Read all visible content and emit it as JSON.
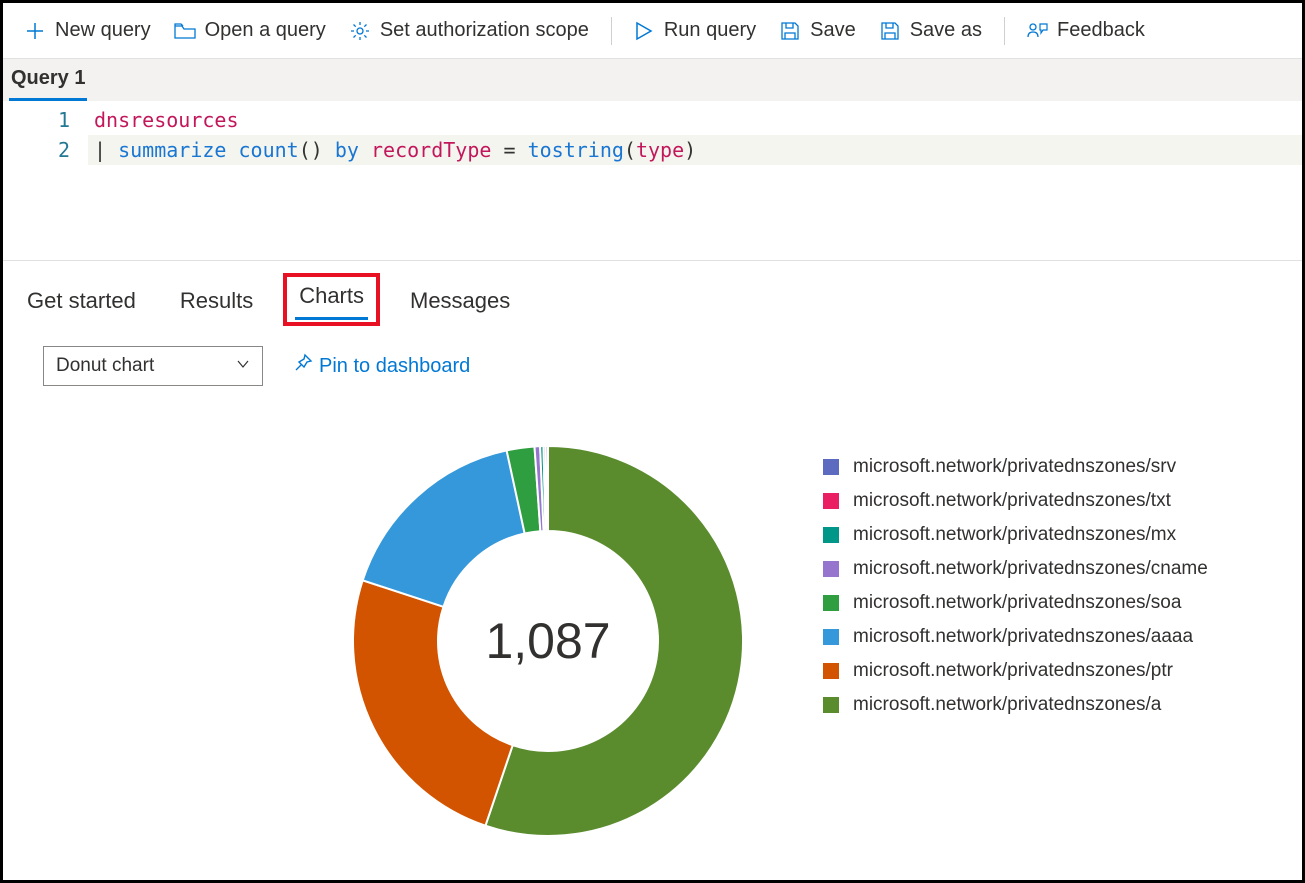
{
  "toolbar": {
    "new_query": "New query",
    "open_query": "Open a query",
    "auth_scope": "Set authorization scope",
    "run_query": "Run query",
    "save": "Save",
    "save_as": "Save as",
    "feedback": "Feedback",
    "icon_color": "#0078d4"
  },
  "query_tab": {
    "label": "Query 1"
  },
  "editor": {
    "lines": [
      {
        "num": "1"
      },
      {
        "num": "2"
      }
    ],
    "tokens": {
      "l1_ident": "dnsresources",
      "l2_pipe": "| ",
      "l2_summarize": "summarize",
      "l2_sp1": " ",
      "l2_count": "count",
      "l2_paren": "()",
      "l2_sp2": " ",
      "l2_by": "by",
      "l2_sp3": " ",
      "l2_record": "recordType",
      "l2_sp4": " ",
      "l2_eq": "=",
      "l2_sp5": " ",
      "l2_tostring": "tostring",
      "l2_open": "(",
      "l2_type": "type",
      "l2_close": ")"
    },
    "colors": {
      "identifier": "#c2185b",
      "keyword": "#1976d2",
      "function": "#1976d2",
      "operator": "#333333",
      "line_number": "#237893",
      "active_line_bg": "#f5f5ef"
    }
  },
  "result_tabs": {
    "get_started": "Get started",
    "results": "Results",
    "charts": "Charts",
    "messages": "Messages",
    "active": "charts",
    "highlight_color": "#e81123",
    "active_underline_color": "#0078d4"
  },
  "chart_controls": {
    "select_label": "Donut chart",
    "pin_label": "Pin to dashboard",
    "link_color": "#0078d4"
  },
  "donut_chart": {
    "type": "donut",
    "center_label": "1,087",
    "center_fontsize": 50,
    "outer_radius": 195,
    "inner_radius": 110,
    "background_color": "#ffffff",
    "gap_color": "#ffffff",
    "gap_width": 2,
    "series": [
      {
        "label": "microsoft.network/privatednszones/srv",
        "value": 2,
        "color": "#5c6bc0"
      },
      {
        "label": "microsoft.network/privatednszones/txt",
        "value": 2,
        "color": "#e91e63"
      },
      {
        "label": "microsoft.network/privatednszones/mx",
        "value": 3,
        "color": "#009688"
      },
      {
        "label": "microsoft.network/privatednszones/cname",
        "value": 5,
        "color": "#9575cd"
      },
      {
        "label": "microsoft.network/privatednszones/soa",
        "value": 25,
        "color": "#2e9e41"
      },
      {
        "label": "microsoft.network/privatednszones/aaaa",
        "value": 180,
        "color": "#3498db"
      },
      {
        "label": "microsoft.network/privatednszones/ptr",
        "value": 270,
        "color": "#d35400"
      },
      {
        "label": "microsoft.network/privatednszones/a",
        "value": 600,
        "color": "#5a8c2e"
      }
    ],
    "legend_fontsize": 19,
    "legend_swatch_size": 16
  }
}
